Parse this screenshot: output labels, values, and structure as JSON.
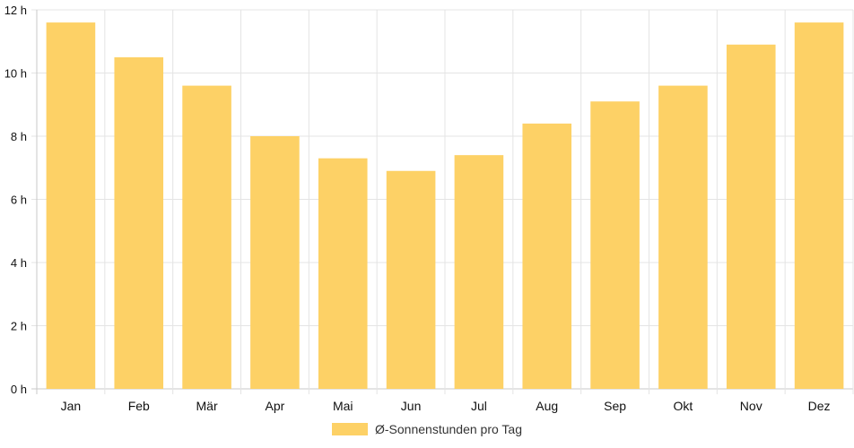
{
  "chart_data": {
    "type": "bar",
    "categories": [
      "Jan",
      "Feb",
      "Mär",
      "Apr",
      "Mai",
      "Jun",
      "Jul",
      "Aug",
      "Sep",
      "Okt",
      "Nov",
      "Dez"
    ],
    "series": [
      {
        "name": "Ø-Sonnenstunden pro Tag",
        "values": [
          11.6,
          10.5,
          9.6,
          8.0,
          7.3,
          6.9,
          7.4,
          8.4,
          9.1,
          9.6,
          10.9,
          11.6
        ]
      }
    ],
    "y_ticks": [
      "0 h",
      "2 h",
      "4 h",
      "6 h",
      "8 h",
      "10 h",
      "12 h"
    ],
    "ylim": [
      0,
      12
    ],
    "grid": true,
    "legend_position": "bottom",
    "bar_color": "#fdd166",
    "grid_color": "#e4e4e4",
    "axis_color": "#c8c8c8"
  }
}
